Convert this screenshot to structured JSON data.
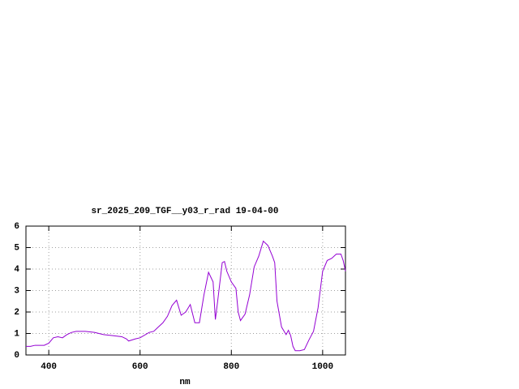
{
  "chart_data": {
    "type": "line",
    "title": "sr_2025_209_TGF__y03_r_rad 19-04-00",
    "x_label": "nm",
    "x": [
      350,
      360,
      370,
      380,
      390,
      400,
      410,
      420,
      430,
      440,
      450,
      460,
      480,
      500,
      520,
      540,
      560,
      570,
      575,
      590,
      600,
      620,
      630,
      640,
      650,
      660,
      670,
      680,
      690,
      700,
      710,
      720,
      730,
      740,
      750,
      760,
      765,
      770,
      780,
      785,
      790,
      800,
      810,
      815,
      820,
      830,
      840,
      850,
      860,
      870,
      880,
      890,
      895,
      900,
      910,
      920,
      925,
      930,
      935,
      940,
      950,
      960,
      970,
      980,
      990,
      1000,
      1010,
      1020,
      1030,
      1040,
      1045,
      1050
    ],
    "series": [
      {
        "name": "sr_2025_209_TGF__y03_r_rad",
        "color": "#9400d3",
        "values": [
          0.4,
          0.4,
          0.45,
          0.45,
          0.45,
          0.55,
          0.8,
          0.85,
          0.8,
          0.95,
          1.05,
          1.1,
          1.1,
          1.05,
          0.95,
          0.9,
          0.85,
          0.75,
          0.65,
          0.75,
          0.8,
          1.05,
          1.1,
          1.3,
          1.5,
          1.8,
          2.3,
          2.55,
          1.85,
          2.0,
          2.35,
          1.5,
          1.5,
          2.8,
          3.85,
          3.4,
          1.65,
          2.5,
          4.3,
          4.35,
          3.9,
          3.4,
          3.1,
          2.0,
          1.6,
          1.9,
          2.8,
          4.1,
          4.6,
          5.3,
          5.1,
          4.6,
          4.3,
          2.5,
          1.3,
          0.95,
          1.15,
          0.9,
          0.4,
          0.2,
          0.2,
          0.25,
          0.7,
          1.1,
          2.2,
          3.9,
          4.4,
          4.5,
          4.7,
          4.7,
          4.4,
          3.9
        ]
      }
    ],
    "xlim": [
      350,
      1050
    ],
    "xticks": [
      400,
      600,
      800,
      1000
    ],
    "ylim": [
      0,
      6
    ],
    "yticks": [
      0,
      1,
      2,
      3,
      4,
      5,
      6
    ],
    "grid": true
  }
}
